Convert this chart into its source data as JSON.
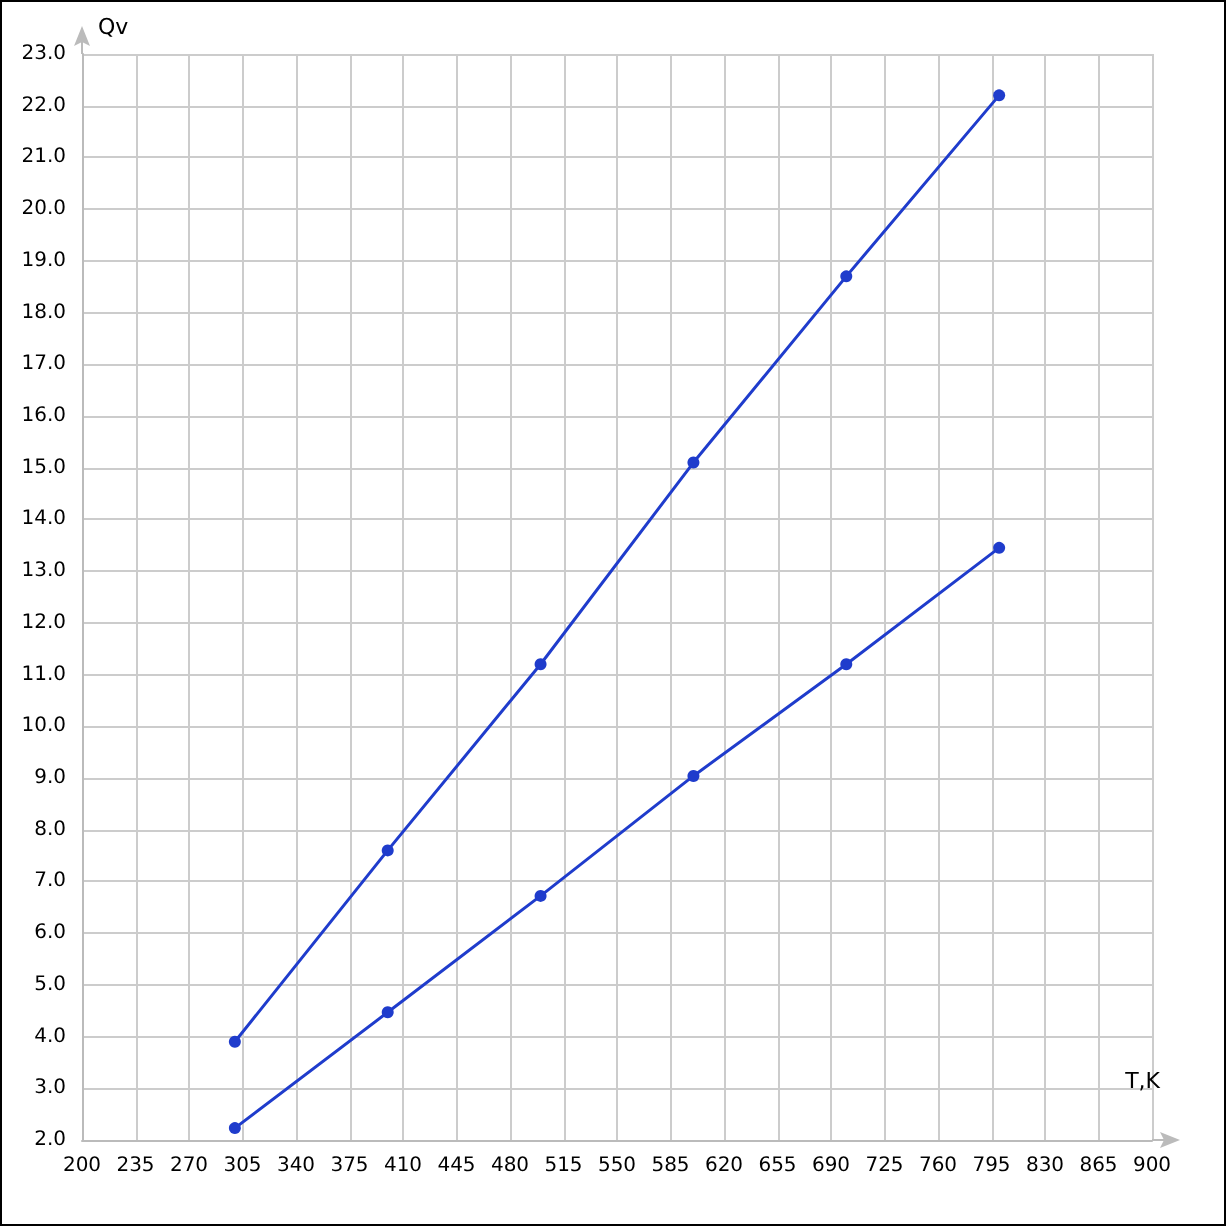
{
  "chart_data": {
    "type": "line",
    "xlabel": "T,K",
    "ylabel": "Qv",
    "x": [
      300,
      400,
      500,
      600,
      700,
      800
    ],
    "series": [
      {
        "color": "#1f3ccc",
        "values": [
          3.9,
          7.6,
          11.2,
          15.1,
          18.7,
          22.2
        ]
      },
      {
        "color": "#1f3ccc",
        "values": [
          2.23,
          4.47,
          6.72,
          9.04,
          11.2,
          13.45
        ]
      }
    ],
    "xlim": [
      200,
      900
    ],
    "xticks": [
      200,
      235,
      270,
      305,
      340,
      375,
      410,
      445,
      480,
      515,
      550,
      585,
      620,
      655,
      690,
      725,
      760,
      795,
      830,
      865,
      900
    ],
    "ylim": [
      2,
      23
    ],
    "yticks": [
      {
        "value": 2,
        "label": "2.0"
      },
      {
        "value": 3,
        "label": "3.0"
      },
      {
        "value": 4,
        "label": "4.0"
      },
      {
        "value": 5,
        "label": "5.0"
      },
      {
        "value": 6,
        "label": "6.0"
      },
      {
        "value": 7,
        "label": "7.0"
      },
      {
        "value": 8,
        "label": "8.0"
      },
      {
        "value": 9,
        "label": "9.0"
      },
      {
        "value": 10,
        "label": "10.0"
      },
      {
        "value": 11,
        "label": "11.0"
      },
      {
        "value": 12,
        "label": "12.0"
      },
      {
        "value": 13,
        "label": "13.0"
      },
      {
        "value": 14,
        "label": "14.0"
      },
      {
        "value": 15,
        "label": "15.0"
      },
      {
        "value": 16,
        "label": "16.0"
      },
      {
        "value": 17,
        "label": "17.0"
      },
      {
        "value": 18,
        "label": "18.0"
      },
      {
        "value": 19,
        "label": "19.0"
      },
      {
        "value": 20,
        "label": "20.0"
      },
      {
        "value": 21,
        "label": "21.0"
      },
      {
        "value": 22,
        "label": "22.0"
      },
      {
        "value": 23,
        "label": "23.0"
      }
    ],
    "grid": true,
    "marker": "circle",
    "line_style": "solid"
  }
}
